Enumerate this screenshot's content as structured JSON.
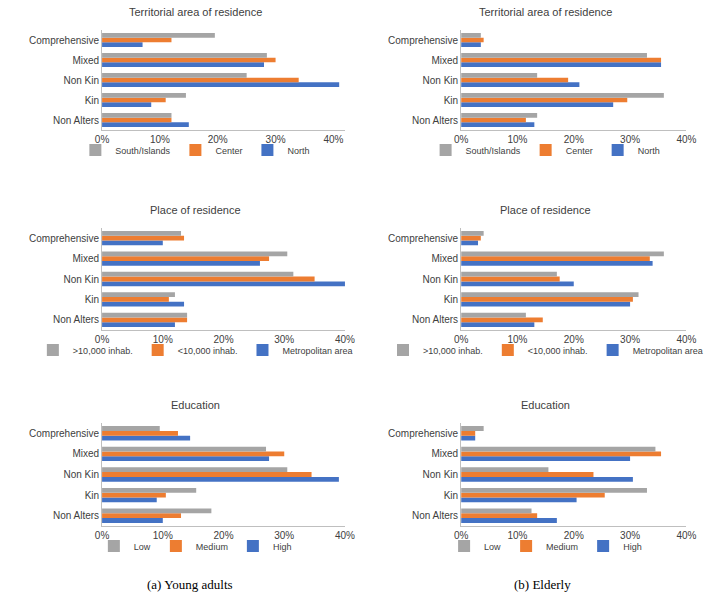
{
  "captions": [
    "(a) Young adults",
    "(b) Elderly"
  ],
  "chart_data": [
    {
      "type": "bar",
      "orientation": "horizontal",
      "title": "Territorial area of residence",
      "categories": [
        "Non Alters",
        "Kin",
        "Non Kin",
        "Mixed",
        "Comprehensive"
      ],
      "series": [
        {
          "name": "North",
          "color": "#4472c4",
          "values": [
            15,
            8.5,
            41,
            28,
            7
          ]
        },
        {
          "name": "Center",
          "color": "#ed7d31",
          "values": [
            12,
            11,
            34,
            30,
            12
          ]
        },
        {
          "name": "South/Islands",
          "color": "#a5a5a5",
          "values": [
            12,
            14.5,
            25,
            28.5,
            19.5
          ]
        }
      ],
      "xlim": [
        0,
        42
      ],
      "xticks": [
        {
          "value": 0,
          "label": "0%"
        },
        {
          "value": 10,
          "label": "10%"
        },
        {
          "value": 20,
          "label": "20%"
        },
        {
          "value": 30,
          "label": "30%"
        },
        {
          "value": 40,
          "label": "40%"
        }
      ],
      "grid": false,
      "legend": "bottom"
    },
    {
      "type": "bar",
      "orientation": "horizontal",
      "title": "Place of residence",
      "categories": [
        "Non Alters",
        "Kin",
        "Non Kin",
        "Mixed",
        "Comprehensive"
      ],
      "series": [
        {
          "name": "Metropolitan area",
          "color": "#4472c4",
          "values": [
            12,
            13.5,
            40,
            26,
            10
          ]
        },
        {
          "name": "<10,000 inhab.",
          "color": "#ed7d31",
          "values": [
            14,
            11,
            35,
            27.5,
            13.5
          ]
        },
        {
          "name": ">10,000 inhab.",
          "color": "#a5a5a5",
          "values": [
            14,
            12,
            31.5,
            30.5,
            13
          ]
        }
      ],
      "xlim": [
        0,
        40
      ],
      "xticks": [
        {
          "value": 0,
          "label": "0%"
        },
        {
          "value": 10,
          "label": "10%"
        },
        {
          "value": 20,
          "label": "20%"
        },
        {
          "value": 30,
          "label": "30%"
        },
        {
          "value": 40,
          "label": "40%"
        }
      ],
      "grid": false,
      "legend": "bottom"
    },
    {
      "type": "bar",
      "orientation": "horizontal",
      "title": "Education",
      "categories": [
        "Non Alters",
        "Kin",
        "Non Kin",
        "Mixed",
        "Comprehensive"
      ],
      "series": [
        {
          "name": "High",
          "color": "#4472c4",
          "values": [
            10,
            9,
            39,
            27.5,
            14.5
          ]
        },
        {
          "name": "Medium",
          "color": "#ed7d31",
          "values": [
            13,
            10.5,
            34.5,
            30,
            12.5
          ]
        },
        {
          "name": "Low",
          "color": "#a5a5a5",
          "values": [
            18,
            15.5,
            30.5,
            27,
            9.5
          ]
        }
      ],
      "xlim": [
        0,
        40
      ],
      "xticks": [
        {
          "value": 0,
          "label": "0%"
        },
        {
          "value": 10,
          "label": "10%"
        },
        {
          "value": 20,
          "label": "20%"
        },
        {
          "value": 30,
          "label": "30%"
        },
        {
          "value": 40,
          "label": "40%"
        }
      ],
      "grid": false,
      "legend": "bottom"
    },
    {
      "type": "bar",
      "orientation": "horizontal",
      "title": "Territorial area of residence",
      "categories": [
        "Non Alters",
        "Kin",
        "Non Kin",
        "Mixed",
        "Comprehensive"
      ],
      "series": [
        {
          "name": "North",
          "color": "#4472c4",
          "values": [
            13,
            27,
            21,
            35.5,
            3.5
          ]
        },
        {
          "name": "Center",
          "color": "#ed7d31",
          "values": [
            11.5,
            29.5,
            19,
            35.5,
            4
          ]
        },
        {
          "name": "South/Islands",
          "color": "#a5a5a5",
          "values": [
            13.5,
            36,
            13.5,
            33,
            3.5
          ]
        }
      ],
      "xlim": [
        0,
        40
      ],
      "xticks": [
        {
          "value": 0,
          "label": "0%"
        },
        {
          "value": 10,
          "label": "10%"
        },
        {
          "value": 20,
          "label": "20%"
        },
        {
          "value": 30,
          "label": "30%"
        },
        {
          "value": 40,
          "label": "40%"
        }
      ],
      "grid": false,
      "legend": "bottom"
    },
    {
      "type": "bar",
      "orientation": "horizontal",
      "title": "Place of residence",
      "categories": [
        "Non Alters",
        "Kin",
        "Non Kin",
        "Mixed",
        "Comprehensive"
      ],
      "series": [
        {
          "name": "Metropolitan area",
          "color": "#4472c4",
          "values": [
            13,
            30,
            20,
            34,
            3
          ]
        },
        {
          "name": "<10,000 inhab.",
          "color": "#ed7d31",
          "values": [
            14.5,
            30.5,
            17.5,
            33.5,
            3.5
          ]
        },
        {
          "name": ">10,000 inhab.",
          "color": "#a5a5a5",
          "values": [
            11.5,
            31.5,
            17,
            36,
            4
          ]
        }
      ],
      "xlim": [
        0,
        40
      ],
      "xticks": [
        {
          "value": 0,
          "label": "0%"
        },
        {
          "value": 10,
          "label": "10%"
        },
        {
          "value": 20,
          "label": "20%"
        },
        {
          "value": 30,
          "label": "30%"
        },
        {
          "value": 40,
          "label": "40%"
        }
      ],
      "grid": false,
      "legend": "bottom"
    },
    {
      "type": "bar",
      "orientation": "horizontal",
      "title": "Education",
      "categories": [
        "Non Alters",
        "Kin",
        "Non Kin",
        "Mixed",
        "Comprehensive"
      ],
      "series": [
        {
          "name": "High",
          "color": "#4472c4",
          "values": [
            17,
            20.5,
            30.5,
            30,
            2.5
          ]
        },
        {
          "name": "Medium",
          "color": "#ed7d31",
          "values": [
            13.5,
            25.5,
            23.5,
            35.5,
            2.5
          ]
        },
        {
          "name": "Low",
          "color": "#a5a5a5",
          "values": [
            12.5,
            33,
            15.5,
            34.5,
            4
          ]
        }
      ],
      "xlim": [
        0,
        40
      ],
      "xticks": [
        {
          "value": 0,
          "label": "0%"
        },
        {
          "value": 10,
          "label": "10%"
        },
        {
          "value": 20,
          "label": "20%"
        },
        {
          "value": 30,
          "label": "30%"
        },
        {
          "value": 40,
          "label": "40%"
        }
      ],
      "grid": false,
      "legend": "bottom"
    }
  ]
}
